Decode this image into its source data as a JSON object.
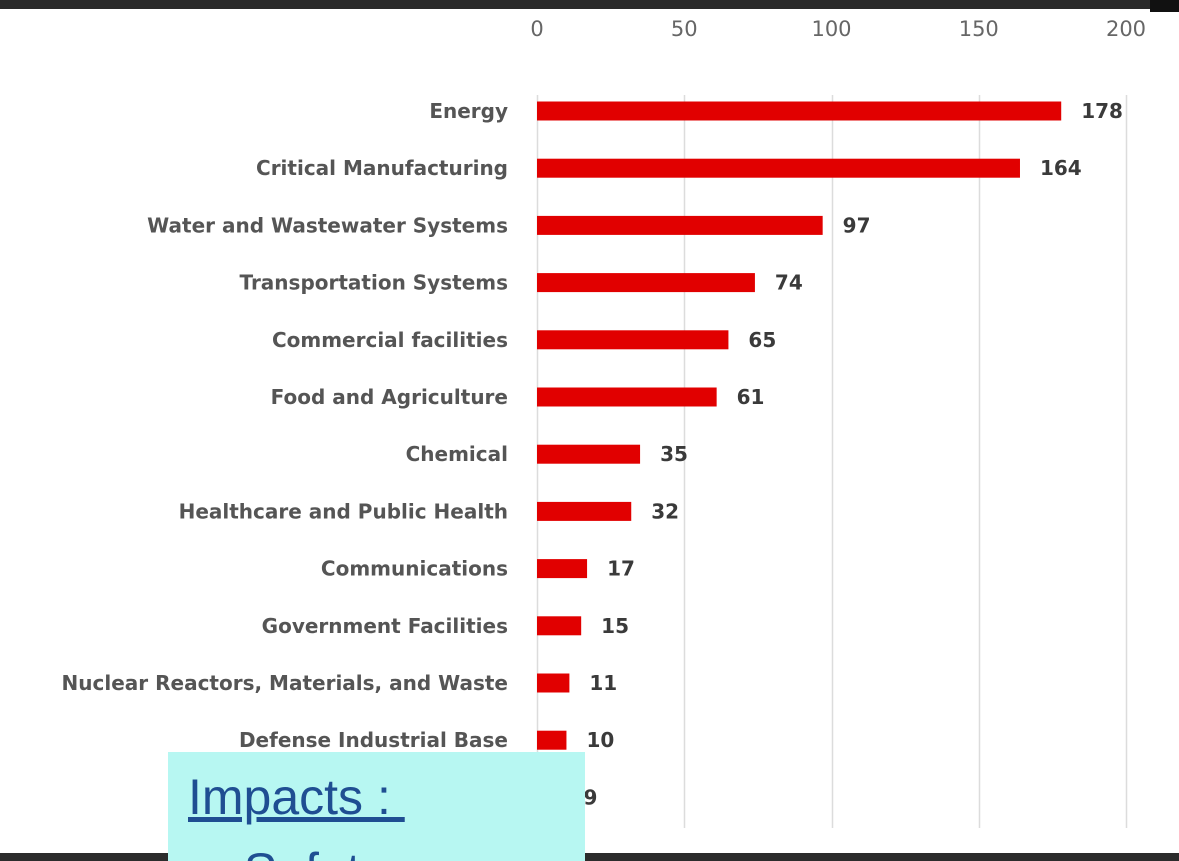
{
  "colors": {
    "bar": "#e10000",
    "grid": "#dcdcdc",
    "box_bg": "#b7f7f2",
    "box_text": "#1f4e92"
  },
  "chart_data": {
    "type": "bar",
    "orientation": "horizontal",
    "categories": [
      "Energy",
      "Critical Manufacturing",
      "Water and Wastewater Systems",
      "Transportation Systems",
      "Commercial facilities",
      "Food and Agriculture",
      "Chemical",
      "Healthcare and Public Health",
      "Communications",
      "Government Facilities",
      "Nuclear Reactors, Materials, and Waste",
      "Defense Industrial Base",
      ""
    ],
    "values": [
      178,
      164,
      97,
      74,
      65,
      61,
      35,
      32,
      17,
      15,
      11,
      10,
      9
    ],
    "value_labels": [
      "178",
      "164",
      "97",
      "74",
      "65",
      "61",
      "35",
      "32",
      "17",
      "15",
      "11",
      "10",
      "9"
    ],
    "xlim": [
      0,
      200
    ],
    "xticks": [
      "0",
      "50",
      "100",
      "150",
      "200"
    ],
    "xtick_values": [
      0,
      50,
      100,
      150,
      200
    ],
    "x_axis_position": "top",
    "grid": "vertical",
    "legend": "none",
    "title": "",
    "xlabel": "",
    "ylabel": ""
  },
  "overlay": {
    "title": "Impacts : ",
    "next_line": "➢ Safety"
  }
}
